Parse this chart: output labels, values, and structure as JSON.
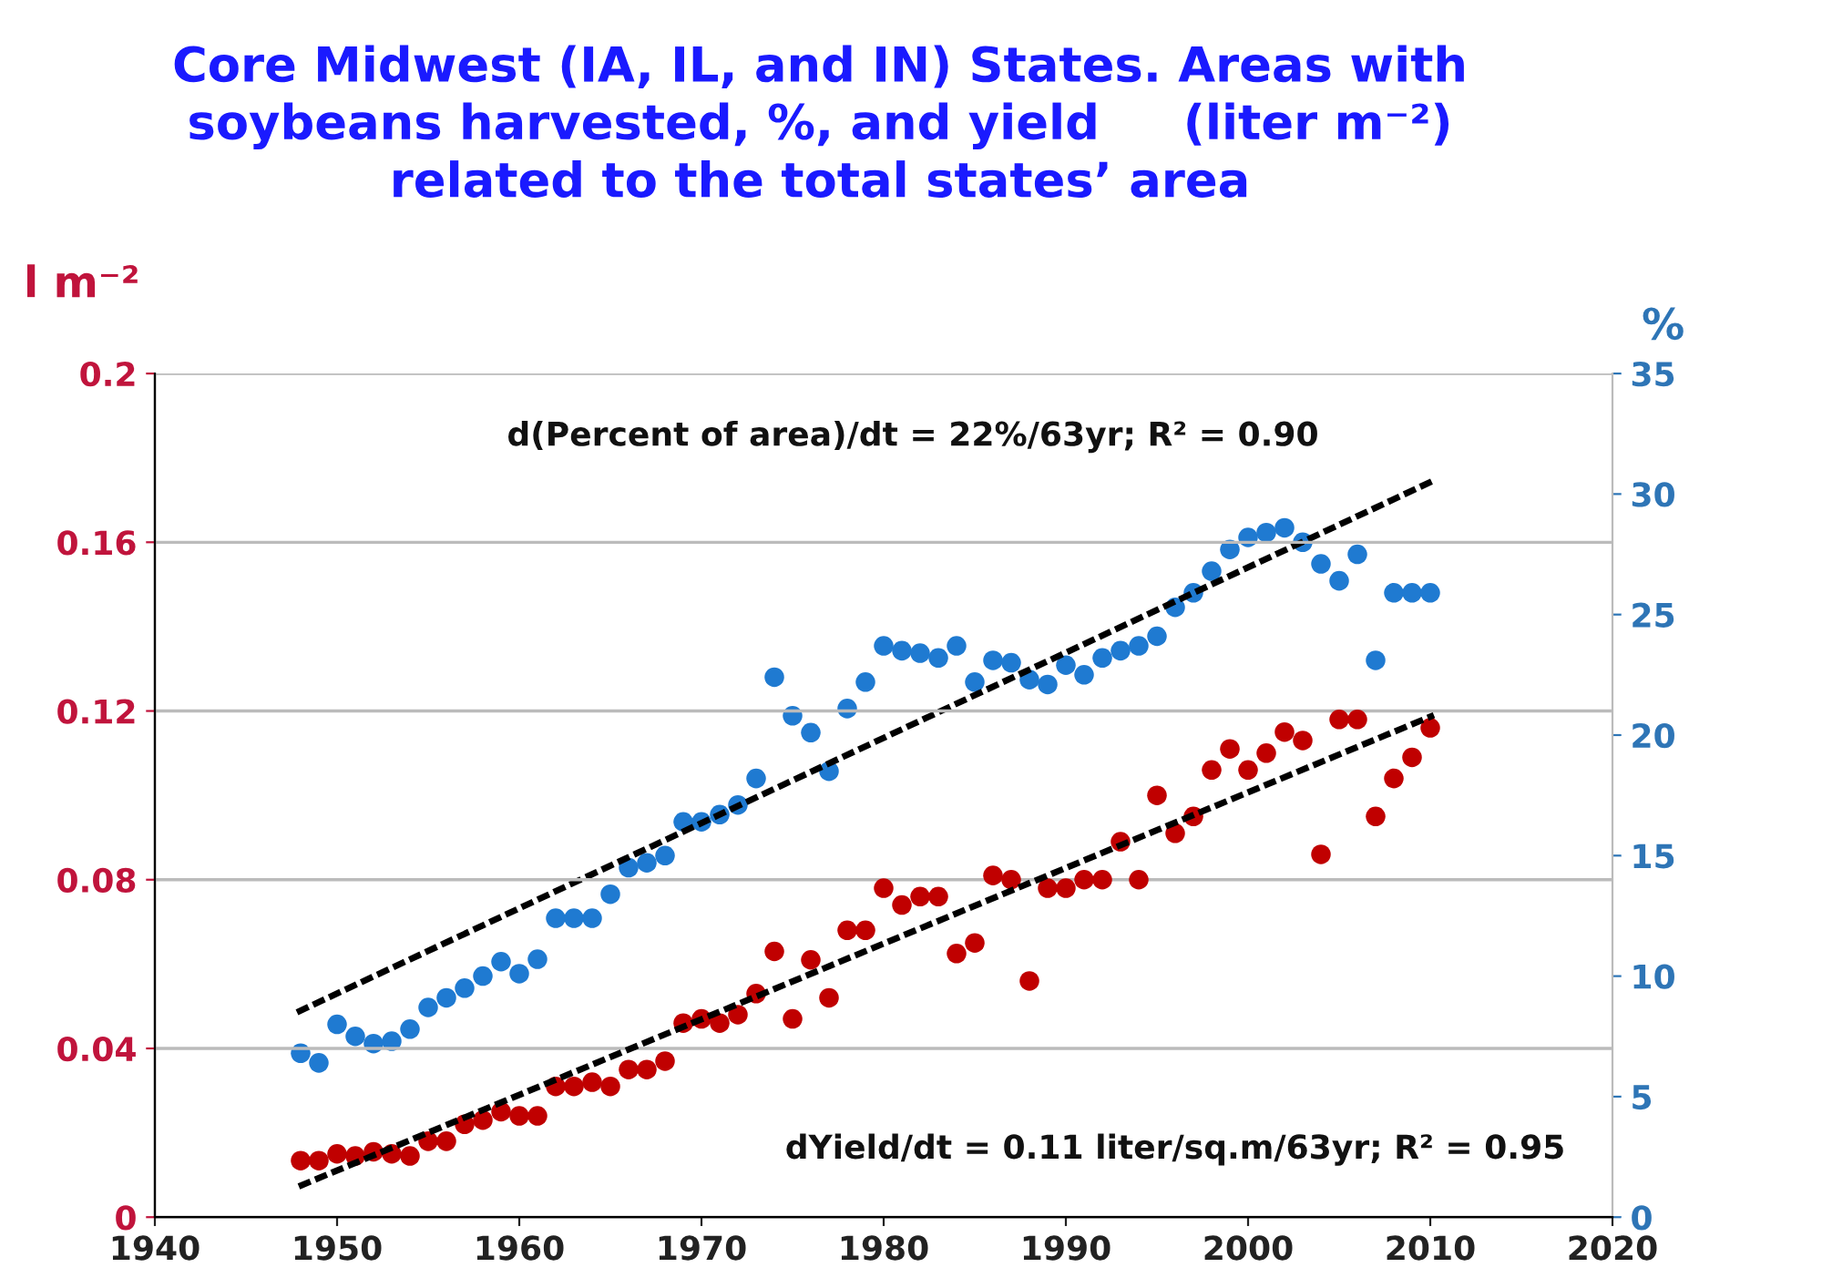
{
  "chart_data": {
    "type": "scatter",
    "title": "Core Midwest (IA, IL, and IN) States. Areas with\nsoybeans harvested, %, and yield     (liter m⁻²)\nrelated to the total states’ area",
    "ylabel": "l m⁻²",
    "y2label": "%",
    "x": [
      1948,
      1949,
      1950,
      1951,
      1952,
      1953,
      1954,
      1955,
      1956,
      1957,
      1958,
      1959,
      1960,
      1961,
      1962,
      1963,
      1964,
      1965,
      1966,
      1967,
      1968,
      1969,
      1970,
      1971,
      1972,
      1973,
      1974,
      1975,
      1976,
      1977,
      1978,
      1979,
      1980,
      1981,
      1982,
      1983,
      1984,
      1985,
      1986,
      1987,
      1988,
      1989,
      1990,
      1991,
      1992,
      1993,
      1994,
      1995,
      1996,
      1997,
      1998,
      1999,
      2000,
      2001,
      2002,
      2003,
      2004,
      2005,
      2006,
      2007,
      2008,
      2009,
      2010
    ],
    "series": [
      {
        "marker": "circle",
        "axis": "y",
        "color": "#c00000",
        "values": [
          0.0134,
          0.0134,
          0.015,
          0.0145,
          0.0155,
          0.015,
          0.0145,
          0.018,
          0.018,
          0.022,
          0.023,
          0.025,
          0.024,
          0.024,
          0.031,
          0.031,
          0.032,
          0.031,
          0.035,
          0.035,
          0.037,
          0.046,
          0.047,
          0.046,
          0.048,
          0.053,
          0.063,
          0.047,
          0.061,
          0.052,
          0.068,
          0.068,
          0.078,
          0.074,
          0.076,
          0.076,
          0.0625,
          0.065,
          0.081,
          0.08,
          0.056,
          0.078,
          0.078,
          0.08,
          0.08,
          0.089,
          0.08,
          0.1,
          0.091,
          0.095,
          0.106,
          0.111,
          0.106,
          0.11,
          0.115,
          0.113,
          0.086,
          0.118,
          0.118,
          0.095,
          0.104,
          0.109,
          0.116
        ]
      },
      {
        "marker": "circle",
        "axis": "y2",
        "color": "#1f7ad1",
        "values": [
          6.8,
          6.4,
          8.0,
          7.5,
          7.2,
          7.3,
          7.8,
          8.7,
          9.1,
          9.5,
          10.0,
          10.6,
          10.1,
          10.7,
          12.4,
          12.4,
          12.4,
          13.4,
          14.5,
          14.7,
          15.0,
          16.4,
          16.4,
          16.7,
          17.1,
          18.2,
          22.4,
          20.8,
          20.1,
          18.5,
          21.1,
          22.2,
          23.7,
          23.5,
          23.4,
          23.2,
          23.7,
          22.2,
          23.1,
          23.0,
          22.3,
          22.1,
          22.9,
          22.5,
          23.2,
          23.5,
          23.7,
          24.1,
          25.3,
          25.9,
          26.8,
          27.7,
          28.2,
          28.4,
          28.6,
          28.0,
          27.1,
          26.4,
          27.5,
          23.1,
          25.9,
          25.9,
          25.9
        ]
      },
      {
        "type": "line",
        "axis": "y2",
        "color": "#000000",
        "line_style": "dashed",
        "x": [
          1947.8,
          2010.3
        ],
        "values": [
          8.5,
          30.6
        ]
      },
      {
        "type": "line",
        "axis": "y",
        "color": "#000000",
        "line_style": "dashed",
        "x": [
          1947.9,
          2010.2
        ],
        "values": [
          0.0073,
          0.119
        ]
      }
    ],
    "xlim": [
      1940,
      2020
    ],
    "xticks": [
      1940,
      1950,
      1960,
      1970,
      1980,
      1990,
      2000,
      2010,
      2020
    ],
    "ylim": [
      0,
      0.2
    ],
    "yticks": [
      0,
      0.04,
      0.08,
      0.12,
      0.16,
      0.2
    ],
    "y2lim": [
      0,
      35
    ],
    "y2ticks": [
      0,
      5,
      10,
      15,
      20,
      25,
      30,
      35
    ],
    "grid": "y",
    "legend": false,
    "annotations": [
      "d(Percent of area)/dt = 22%/63yr; R² = 0.90",
      "dYield/dt = 0.11 liter/sq.m/63yr; R² = 0.95"
    ]
  }
}
